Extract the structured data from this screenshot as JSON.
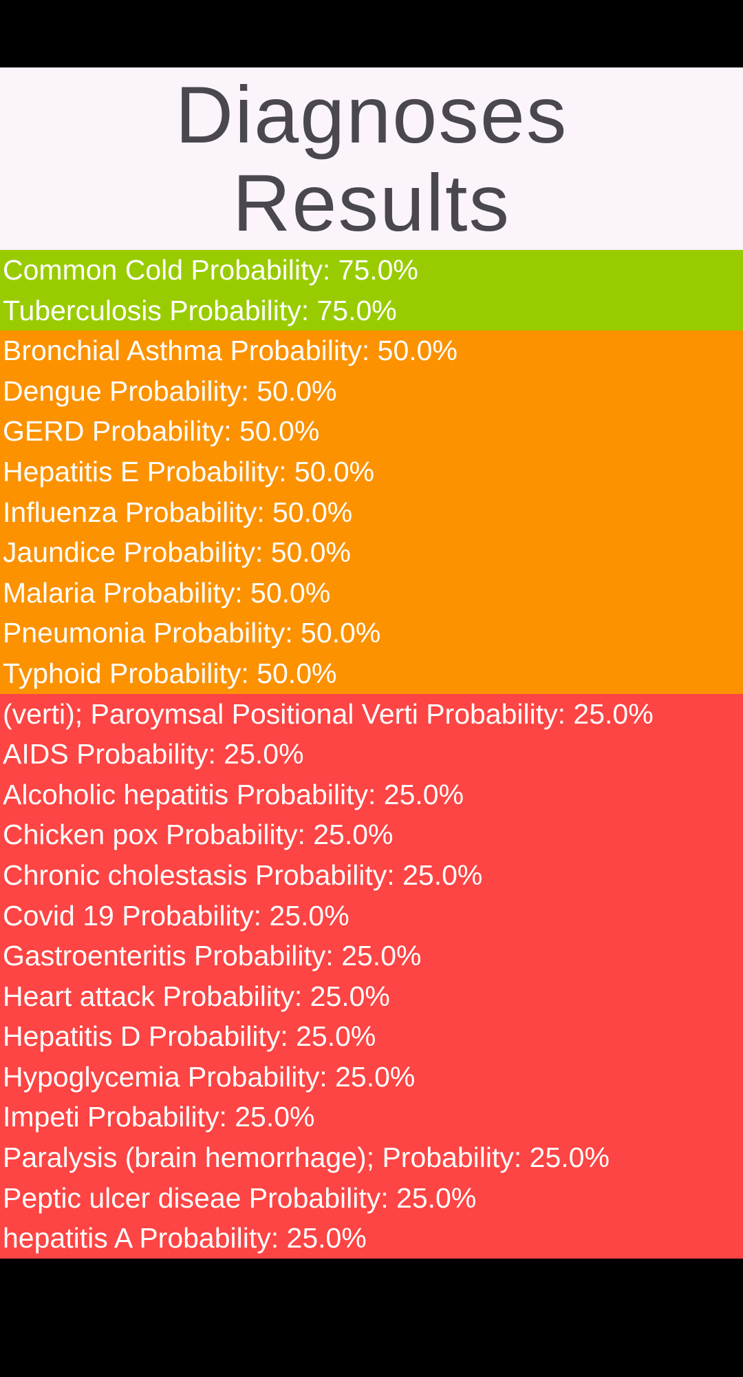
{
  "header": {
    "title": "Diagnoses Results"
  },
  "colors": {
    "header_bg": "#FBF4FB",
    "header_text": "#4A474F",
    "high": "#99CC00",
    "medium": "#FC9200",
    "low": "#FC4544"
  },
  "results": {
    "items": [
      {
        "text": "Common Cold Probability: 75.0%",
        "disease": "Common Cold",
        "probability": "75.0%",
        "level": "high"
      },
      {
        "text": "Tuberculosis Probability: 75.0%",
        "disease": "Tuberculosis",
        "probability": "75.0%",
        "level": "high"
      },
      {
        "text": "Bronchial Asthma Probability: 50.0%",
        "disease": "Bronchial Asthma",
        "probability": "50.0%",
        "level": "medium"
      },
      {
        "text": "Dengue Probability: 50.0%",
        "disease": "Dengue",
        "probability": "50.0%",
        "level": "medium"
      },
      {
        "text": "GERD Probability: 50.0%",
        "disease": "GERD",
        "probability": "50.0%",
        "level": "medium"
      },
      {
        "text": "Hepatitis E Probability: 50.0%",
        "disease": "Hepatitis E",
        "probability": "50.0%",
        "level": "medium"
      },
      {
        "text": "Influenza Probability: 50.0%",
        "disease": "Influenza",
        "probability": "50.0%",
        "level": "medium"
      },
      {
        "text": "Jaundice Probability: 50.0%",
        "disease": "Jaundice",
        "probability": "50.0%",
        "level": "medium"
      },
      {
        "text": "Malaria Probability: 50.0%",
        "disease": "Malaria",
        "probability": "50.0%",
        "level": "medium"
      },
      {
        "text": "Pneumonia Probability: 50.0%",
        "disease": "Pneumonia",
        "probability": "50.0%",
        "level": "medium"
      },
      {
        "text": "Typhoid Probability: 50.0%",
        "disease": "Typhoid",
        "probability": "50.0%",
        "level": "medium"
      },
      {
        "text": "(verti); Paroymsal  Positional Verti Probability: 25.0%",
        "disease": "(verti); Paroymsal  Positional Verti",
        "probability": "25.0%",
        "level": "low"
      },
      {
        "text": "AIDS Probability: 25.0%",
        "disease": "AIDS",
        "probability": "25.0%",
        "level": "low"
      },
      {
        "text": "Alcoholic hepatitis Probability: 25.0%",
        "disease": "Alcoholic hepatitis",
        "probability": "25.0%",
        "level": "low"
      },
      {
        "text": "Chicken pox Probability: 25.0%",
        "disease": "Chicken pox",
        "probability": "25.0%",
        "level": "low"
      },
      {
        "text": "Chronic cholestasis Probability: 25.0%",
        "disease": "Chronic cholestasis",
        "probability": "25.0%",
        "level": "low"
      },
      {
        "text": "Covid 19 Probability: 25.0%",
        "disease": "Covid 19",
        "probability": "25.0%",
        "level": "low"
      },
      {
        "text": "Gastroenteritis Probability: 25.0%",
        "disease": "Gastroenteritis",
        "probability": "25.0%",
        "level": "low"
      },
      {
        "text": "Heart attack Probability: 25.0%",
        "disease": "Heart attack",
        "probability": "25.0%",
        "level": "low"
      },
      {
        "text": "Hepatitis D Probability: 25.0%",
        "disease": "Hepatitis D",
        "probability": "25.0%",
        "level": "low"
      },
      {
        "text": "Hypoglycemia Probability: 25.0%",
        "disease": "Hypoglycemia",
        "probability": "25.0%",
        "level": "low"
      },
      {
        "text": "Impeti Probability: 25.0%",
        "disease": "Impeti",
        "probability": "25.0%",
        "level": "low"
      },
      {
        "text": "Paralysis (brain hemorrhage); Probability: 25.0%",
        "disease": "Paralysis (brain hemorrhage);",
        "probability": "25.0%",
        "level": "low"
      },
      {
        "text": "Peptic ulcer diseae Probability: 25.0%",
        "disease": "Peptic ulcer diseae",
        "probability": "25.0%",
        "level": "low"
      },
      {
        "text": "hepatitis A Probability: 25.0%",
        "disease": "hepatitis A",
        "probability": "25.0%",
        "level": "low"
      }
    ]
  }
}
